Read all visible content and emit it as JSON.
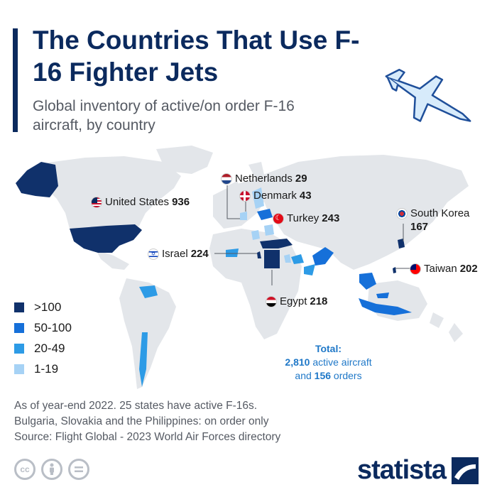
{
  "header": {
    "title": "The Countries That Use F-16 Fighter Jets",
    "subtitle": "Global inventory of active/on order F-16 aircraft, by country"
  },
  "colors": {
    "navy": "#0b2a5e",
    "tier_over_100": "#10316b",
    "tier_50_100": "#1670d9",
    "tier_20_49": "#2d9be6",
    "tier_1_19": "#a6d2f5",
    "land": "#e3e6ea",
    "jet": "#d7ebfb"
  },
  "countries": [
    {
      "name": "United States",
      "value": "936",
      "flag": "us-flag-icon"
    },
    {
      "name": "Netherlands",
      "value": "29",
      "flag": "netherlands-flag-icon"
    },
    {
      "name": "Denmark",
      "value": "43",
      "flag": "denmark-flag-icon"
    },
    {
      "name": "Turkey",
      "value": "243",
      "flag": "turkey-flag-icon"
    },
    {
      "name": "South Korea",
      "value": "167",
      "flag": "south-korea-flag-icon"
    },
    {
      "name": "Israel",
      "value": "224",
      "flag": "israel-flag-icon"
    },
    {
      "name": "Taiwan",
      "value": "202",
      "flag": "taiwan-flag-icon"
    },
    {
      "name": "Egypt",
      "value": "218",
      "flag": "egypt-flag-icon"
    }
  ],
  "legend": [
    {
      "label": ">100",
      "color": "#10316b"
    },
    {
      "label": "50-100",
      "color": "#1670d9"
    },
    {
      "label": "20-49",
      "color": "#2d9be6"
    },
    {
      "label": "1-19",
      "color": "#a6d2f5"
    }
  ],
  "total": {
    "heading": "Total:",
    "active_value": "2,810",
    "active_text": "active aircraft",
    "orders_prefix": "and",
    "orders_value": "156",
    "orders_text": "orders"
  },
  "footnote": {
    "line1": "As of year-end 2022. 25 states have active F-16s.",
    "line2": "Bulgaria, Slovakia and the Philippines: on order only",
    "line3": "Source: Flight Global - 2023 World Air Forces directory"
  },
  "license_icons": [
    "cc-icon",
    "attribution-icon",
    "no-derivatives-icon"
  ],
  "brand": {
    "name": "statista"
  }
}
